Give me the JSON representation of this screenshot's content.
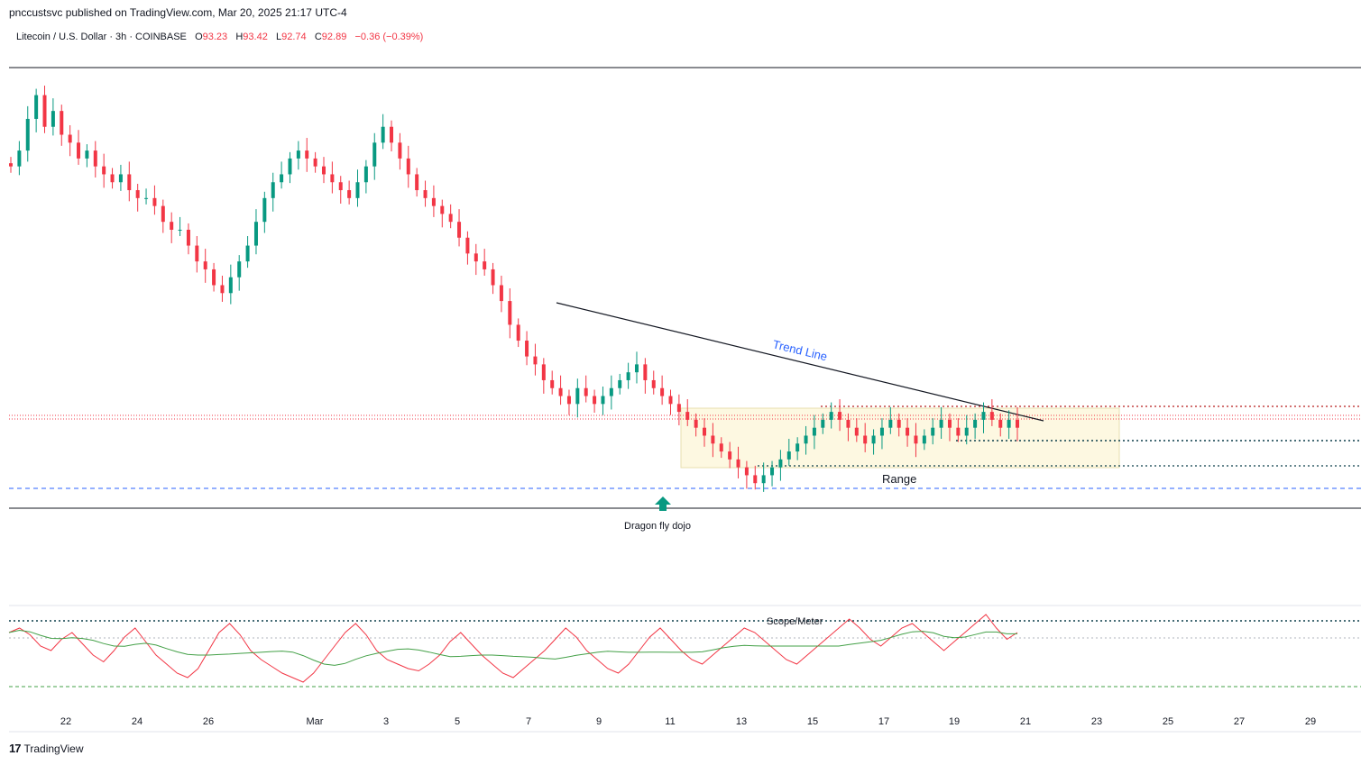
{
  "header": {
    "published": "pnccustsvc published on TradingView.com, Mar 20, 2025 21:17 UTC-4"
  },
  "legend": {
    "symbol": "Litecoin / U.S. Dollar · 3h · COINBASE",
    "o_label": "O",
    "o_value": "93.23",
    "h_label": "H",
    "h_value": "93.42",
    "l_label": "L",
    "l_value": "92.74",
    "c_label": "C",
    "c_value": "92.89",
    "change": "−0.36 (−0.39%)"
  },
  "annotations": {
    "trend_line": "Trend Line",
    "range": "Range",
    "dragonfly": "Dragon fly dojo",
    "scope": "Scope/Meter"
  },
  "footer": {
    "brand": "TradingView",
    "logo": "17"
  },
  "colors": {
    "up": "#089981",
    "down": "#f23645",
    "rsi": "#f23645",
    "rsi_ma": "#43a047",
    "range_fill": "#fdf8e1",
    "trend_text": "#2962ff"
  },
  "chart_data": {
    "type": "candlestick",
    "x_ticks": [
      "22",
      "24",
      "26",
      "Mar",
      "3",
      "5",
      "7",
      "9",
      "11",
      "13",
      "15",
      "17",
      "19",
      "21",
      "23",
      "25",
      "27",
      "29"
    ],
    "price_series_close": [
      125,
      127,
      131,
      134,
      130,
      132,
      129,
      128,
      126,
      127,
      125,
      124,
      123,
      124,
      122,
      121,
      121,
      120,
      118,
      117,
      117,
      115,
      113,
      112,
      110,
      109,
      111,
      113,
      115,
      118,
      121,
      123,
      124,
      126,
      127,
      126,
      125,
      124,
      123,
      122,
      121,
      123,
      125,
      128,
      130,
      128,
      126,
      124,
      122,
      121,
      120,
      119,
      118,
      116,
      114,
      113,
      112,
      110,
      108,
      105,
      103,
      101,
      100,
      98,
      97,
      96,
      95,
      97,
      96,
      95,
      96,
      97,
      98,
      99,
      100,
      98,
      97,
      96,
      95,
      94,
      93,
      92,
      91,
      90,
      89,
      88,
      87,
      86,
      85,
      86,
      87,
      88,
      89,
      90,
      91,
      92,
      93,
      94,
      93,
      92,
      91,
      90,
      91,
      92,
      93,
      92,
      91,
      90,
      91,
      92,
      93,
      92,
      91,
      92,
      93,
      94,
      93,
      92,
      93,
      92
    ],
    "rsi_values": [
      58,
      60,
      57,
      52,
      50,
      55,
      58,
      53,
      48,
      45,
      50,
      56,
      60,
      54,
      48,
      44,
      40,
      38,
      42,
      50,
      58,
      62,
      57,
      50,
      46,
      43,
      40,
      38,
      36,
      40,
      46,
      52,
      58,
      62,
      57,
      50,
      46,
      44,
      42,
      41,
      44,
      48,
      54,
      58,
      53,
      48,
      44,
      40,
      38,
      42,
      46,
      50,
      55,
      60,
      56,
      50,
      46,
      42,
      40,
      44,
      50,
      56,
      60,
      55,
      50,
      46,
      44,
      48,
      52,
      56,
      60,
      58,
      54,
      50,
      46,
      44,
      48,
      52,
      56,
      60,
      64,
      60,
      55,
      52,
      56,
      60,
      62,
      58,
      54,
      50,
      54,
      58,
      62,
      66,
      60,
      55,
      58
    ]
  }
}
